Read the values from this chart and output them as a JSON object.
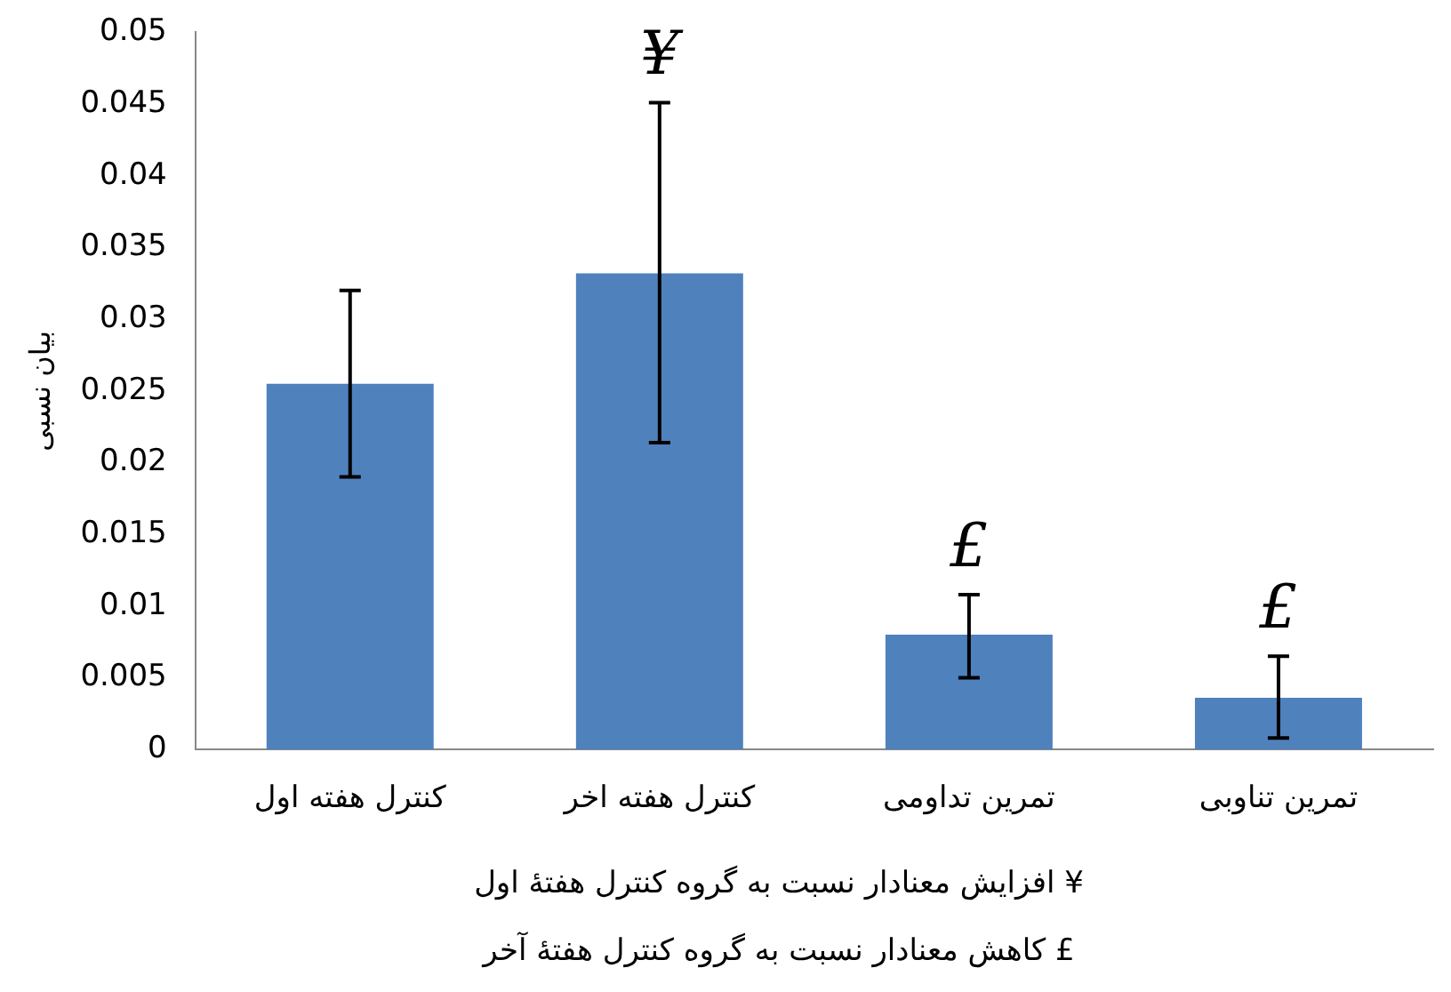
{
  "chart_data": {
    "type": "bar",
    "ylabel": "بیان نسبی",
    "categories": [
      "کنترل هفته اول",
      "کنترل هفته اخر",
      "تمرین تداومی",
      "تمرین تناوبی"
    ],
    "values": [
      0.0255,
      0.0332,
      0.008,
      0.0036
    ],
    "errors": [
      [
        0.019,
        0.032
      ],
      [
        0.0214,
        0.0451
      ],
      [
        0.005,
        0.0108
      ],
      [
        0.0008,
        0.0065
      ]
    ],
    "color": "#4f81bd",
    "ylim": [
      0,
      0.05
    ],
    "yticks": [
      0,
      0.005,
      0.01,
      0.015,
      0.02,
      0.025,
      0.03,
      0.035,
      0.04,
      0.045,
      0.05
    ],
    "grid": false,
    "legend": false,
    "value_labels": [
      null,
      "¥",
      "£",
      "£"
    ],
    "annotations": [
      "¥ افزایش معنادار نسبت به گروه کنترل هفتهٔ اول",
      "£ کاهش معنادار نسبت به گروه کنترل هفتهٔ آخر"
    ]
  }
}
